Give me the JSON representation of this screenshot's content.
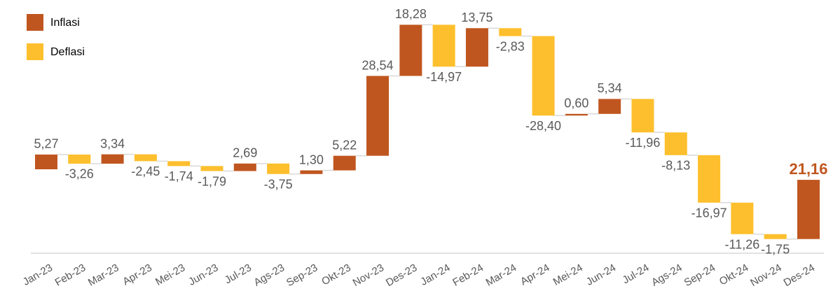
{
  "chart_data": {
    "type": "waterfall",
    "categories": [
      "Jan-23",
      "Feb-23",
      "Mar-23",
      "Apr-23",
      "Mei-23",
      "Jun-23",
      "Jul-23",
      "Ags-23",
      "Sep-23",
      "Okt-23",
      "Nov-23",
      "Des-23",
      "Jan-24",
      "Feb-24",
      "Mar-24",
      "Apr-24",
      "Mei-24",
      "Jun-24",
      "Jul-24",
      "Ags-24",
      "Sep-24",
      "Okt-24",
      "Nov-24",
      "Des-24"
    ],
    "values": [
      5.27,
      -3.26,
      3.34,
      -2.45,
      -1.74,
      -1.79,
      2.69,
      -3.75,
      1.3,
      5.22,
      28.54,
      18.28,
      -14.97,
      13.75,
      -2.83,
      -28.4,
      0.6,
      5.34,
      -11.96,
      -8.13,
      -16.97,
      -11.26,
      -1.75,
      21.16
    ],
    "value_labels": [
      "5,27",
      "-3,26",
      "3,34",
      "-2,45",
      "-1,74",
      "-1,79",
      "2,69",
      "-3,75",
      "1,30",
      "5,22",
      "28,54",
      "18,28",
      "-14,97",
      "13,75",
      "-2,83",
      "-28,40",
      "0,60",
      "5,34",
      "-11,96",
      "-8,13",
      "-16,97",
      "-11,26",
      "-1,75",
      "21,16"
    ],
    "increase": {
      "name": "Inflasi",
      "color": "#c0561f"
    },
    "decrease": {
      "name": "Deflasi",
      "color": "#fdbf2d"
    },
    "ylim": [
      -30,
      60
    ]
  }
}
